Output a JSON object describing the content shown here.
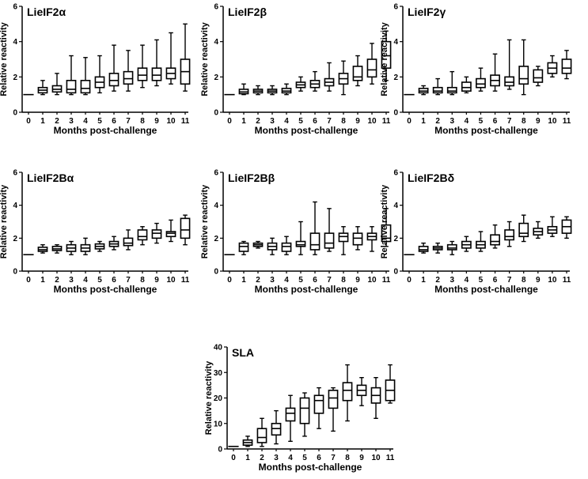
{
  "chart_data": [
    {
      "type": "boxplot",
      "title": "LieIF2α",
      "xlabel": "Months post-challenge",
      "ylabel": "Relative reactivity",
      "categories": [
        "0",
        "1",
        "2",
        "3",
        "4",
        "5",
        "6",
        "7",
        "8",
        "9",
        "10",
        "11"
      ],
      "ylim": [
        0,
        6
      ],
      "yticks": [
        0,
        2,
        4,
        6
      ],
      "boxes": [
        {
          "min": 1.0,
          "q1": 1.0,
          "median": 1.0,
          "q3": 1.0,
          "max": 1.0
        },
        {
          "min": 1.0,
          "q1": 1.1,
          "median": 1.25,
          "q3": 1.4,
          "max": 1.8
        },
        {
          "min": 1.0,
          "q1": 1.15,
          "median": 1.3,
          "q3": 1.5,
          "max": 2.2
        },
        {
          "min": 1.0,
          "q1": 1.1,
          "median": 1.3,
          "q3": 1.8,
          "max": 3.2
        },
        {
          "min": 1.0,
          "q1": 1.1,
          "median": 1.35,
          "q3": 1.8,
          "max": 3.1
        },
        {
          "min": 1.1,
          "q1": 1.4,
          "median": 1.7,
          "q3": 2.0,
          "max": 3.2
        },
        {
          "min": 1.2,
          "q1": 1.5,
          "median": 1.8,
          "q3": 2.2,
          "max": 3.8
        },
        {
          "min": 1.2,
          "q1": 1.6,
          "median": 1.9,
          "q3": 2.3,
          "max": 3.5
        },
        {
          "min": 1.4,
          "q1": 1.8,
          "median": 2.1,
          "q3": 2.5,
          "max": 3.8
        },
        {
          "min": 1.5,
          "q1": 1.8,
          "median": 2.1,
          "q3": 2.5,
          "max": 4.1
        },
        {
          "min": 1.6,
          "q1": 1.9,
          "median": 2.2,
          "q3": 2.5,
          "max": 4.5
        },
        {
          "min": 1.2,
          "q1": 1.6,
          "median": 2.3,
          "q3": 3.0,
          "max": 5.0
        }
      ]
    },
    {
      "type": "boxplot",
      "title": "LieIF2β",
      "xlabel": "Months post-challenge",
      "ylabel": "Relative reactivity",
      "categories": [
        "0",
        "1",
        "2",
        "3",
        "4",
        "5",
        "6",
        "7",
        "8",
        "9",
        "10",
        "11"
      ],
      "ylim": [
        0,
        6
      ],
      "yticks": [
        0,
        2,
        4,
        6
      ],
      "boxes": [
        {
          "min": 1.0,
          "q1": 1.0,
          "median": 1.0,
          "q3": 1.0,
          "max": 1.0
        },
        {
          "min": 1.0,
          "q1": 1.05,
          "median": 1.15,
          "q3": 1.3,
          "max": 1.6
        },
        {
          "min": 1.0,
          "q1": 1.1,
          "median": 1.2,
          "q3": 1.3,
          "max": 1.5
        },
        {
          "min": 1.0,
          "q1": 1.1,
          "median": 1.2,
          "q3": 1.3,
          "max": 1.5
        },
        {
          "min": 1.0,
          "q1": 1.1,
          "median": 1.2,
          "q3": 1.35,
          "max": 1.6
        },
        {
          "min": 1.2,
          "q1": 1.4,
          "median": 1.55,
          "q3": 1.7,
          "max": 2.0
        },
        {
          "min": 1.2,
          "q1": 1.4,
          "median": 1.6,
          "q3": 1.8,
          "max": 2.3
        },
        {
          "min": 1.2,
          "q1": 1.5,
          "median": 1.7,
          "q3": 1.9,
          "max": 2.8
        },
        {
          "min": 1.0,
          "q1": 1.6,
          "median": 1.9,
          "q3": 2.2,
          "max": 2.9
        },
        {
          "min": 1.5,
          "q1": 1.8,
          "median": 2.0,
          "q3": 2.6,
          "max": 3.2
        },
        {
          "min": 1.6,
          "q1": 2.0,
          "median": 2.4,
          "q3": 3.0,
          "max": 3.9
        },
        {
          "min": 1.8,
          "q1": 2.5,
          "median": 3.2,
          "q3": 4.0,
          "max": 4.6
        }
      ]
    },
    {
      "type": "boxplot",
      "title": "LieIF2γ",
      "xlabel": "Months post-challenge",
      "ylabel": "Relative reactivity",
      "categories": [
        "0",
        "1",
        "2",
        "3",
        "4",
        "5",
        "6",
        "7",
        "8",
        "9",
        "10",
        "11"
      ],
      "ylim": [
        0,
        6
      ],
      "yticks": [
        0,
        2,
        4,
        6
      ],
      "boxes": [
        {
          "min": 1.0,
          "q1": 1.0,
          "median": 1.0,
          "q3": 1.0,
          "max": 1.0
        },
        {
          "min": 1.0,
          "q1": 1.1,
          "median": 1.2,
          "q3": 1.35,
          "max": 1.5
        },
        {
          "min": 1.0,
          "q1": 1.1,
          "median": 1.2,
          "q3": 1.4,
          "max": 1.9
        },
        {
          "min": 1.0,
          "q1": 1.1,
          "median": 1.2,
          "q3": 1.4,
          "max": 2.3
        },
        {
          "min": 1.1,
          "q1": 1.2,
          "median": 1.4,
          "q3": 1.7,
          "max": 2.0
        },
        {
          "min": 1.2,
          "q1": 1.4,
          "median": 1.6,
          "q3": 1.9,
          "max": 2.5
        },
        {
          "min": 1.2,
          "q1": 1.5,
          "median": 1.8,
          "q3": 2.1,
          "max": 3.3
        },
        {
          "min": 1.3,
          "q1": 1.5,
          "median": 1.7,
          "q3": 2.0,
          "max": 4.1
        },
        {
          "min": 1.0,
          "q1": 1.6,
          "median": 1.9,
          "q3": 2.6,
          "max": 4.1
        },
        {
          "min": 1.5,
          "q1": 1.7,
          "median": 1.95,
          "q3": 2.4,
          "max": 2.6
        },
        {
          "min": 2.0,
          "q1": 2.2,
          "median": 2.5,
          "q3": 2.8,
          "max": 3.2
        },
        {
          "min": 1.9,
          "q1": 2.2,
          "median": 2.5,
          "q3": 3.0,
          "max": 3.5
        }
      ]
    },
    {
      "type": "boxplot",
      "title": "LieIF2Bα",
      "xlabel": "Months post-challenge",
      "ylabel": "Relative reactivity",
      "categories": [
        "0",
        "1",
        "2",
        "3",
        "4",
        "5",
        "6",
        "7",
        "8",
        "9",
        "10",
        "11"
      ],
      "ylim": [
        0,
        6
      ],
      "yticks": [
        0,
        2,
        4,
        6
      ],
      "boxes": [
        {
          "min": 1.0,
          "q1": 1.0,
          "median": 1.0,
          "q3": 1.0,
          "max": 1.0
        },
        {
          "min": 1.1,
          "q1": 1.2,
          "median": 1.3,
          "q3": 1.45,
          "max": 1.6
        },
        {
          "min": 1.1,
          "q1": 1.25,
          "median": 1.35,
          "q3": 1.5,
          "max": 1.6
        },
        {
          "min": 1.0,
          "q1": 1.2,
          "median": 1.4,
          "q3": 1.6,
          "max": 1.8
        },
        {
          "min": 1.0,
          "q1": 1.2,
          "median": 1.4,
          "q3": 1.6,
          "max": 2.0
        },
        {
          "min": 1.2,
          "q1": 1.35,
          "median": 1.5,
          "q3": 1.65,
          "max": 1.8
        },
        {
          "min": 1.3,
          "q1": 1.5,
          "median": 1.65,
          "q3": 1.8,
          "max": 2.1
        },
        {
          "min": 1.3,
          "q1": 1.55,
          "median": 1.7,
          "q3": 2.0,
          "max": 2.5
        },
        {
          "min": 1.6,
          "q1": 1.9,
          "median": 2.1,
          "q3": 2.5,
          "max": 2.7
        },
        {
          "min": 1.7,
          "q1": 2.0,
          "median": 2.3,
          "q3": 2.5,
          "max": 2.9
        },
        {
          "min": 1.8,
          "q1": 2.1,
          "median": 2.3,
          "q3": 2.4,
          "max": 3.1
        },
        {
          "min": 1.6,
          "q1": 2.0,
          "median": 2.5,
          "q3": 3.2,
          "max": 3.4
        }
      ]
    },
    {
      "type": "boxplot",
      "title": "LieIF2Bβ",
      "xlabel": "Months post-challenge",
      "ylabel": "Relative reactivity",
      "categories": [
        "0",
        "1",
        "2",
        "3",
        "4",
        "5",
        "6",
        "7",
        "8",
        "9",
        "10",
        "11"
      ],
      "ylim": [
        0,
        6
      ],
      "yticks": [
        0,
        2,
        4,
        6
      ],
      "boxes": [
        {
          "min": 1.0,
          "q1": 1.0,
          "median": 1.0,
          "q3": 1.0,
          "max": 1.0
        },
        {
          "min": 1.0,
          "q1": 1.2,
          "median": 1.5,
          "q3": 1.7,
          "max": 1.8
        },
        {
          "min": 1.4,
          "q1": 1.5,
          "median": 1.6,
          "q3": 1.7,
          "max": 1.8
        },
        {
          "min": 1.0,
          "q1": 1.3,
          "median": 1.5,
          "q3": 1.7,
          "max": 2.0
        },
        {
          "min": 1.0,
          "q1": 1.2,
          "median": 1.5,
          "q3": 1.7,
          "max": 2.1
        },
        {
          "min": 1.0,
          "q1": 1.5,
          "median": 1.6,
          "q3": 1.8,
          "max": 3.0
        },
        {
          "min": 1.0,
          "q1": 1.3,
          "median": 1.6,
          "q3": 2.3,
          "max": 4.2
        },
        {
          "min": 1.2,
          "q1": 1.4,
          "median": 1.7,
          "q3": 2.3,
          "max": 3.8
        },
        {
          "min": 1.0,
          "q1": 1.8,
          "median": 2.1,
          "q3": 2.3,
          "max": 2.7
        },
        {
          "min": 1.3,
          "q1": 1.6,
          "median": 2.0,
          "q3": 2.3,
          "max": 2.7
        },
        {
          "min": 1.2,
          "q1": 1.9,
          "median": 2.1,
          "q3": 2.3,
          "max": 2.7
        },
        {
          "min": 1.5,
          "q1": 1.8,
          "median": 2.0,
          "q3": 2.8,
          "max": 3.8
        }
      ]
    },
    {
      "type": "boxplot",
      "title": "LieIF2Bδ",
      "xlabel": "Months post-challenge",
      "ylabel": "Relative reactivity",
      "categories": [
        "0",
        "1",
        "2",
        "3",
        "4",
        "5",
        "6",
        "7",
        "8",
        "9",
        "10",
        "11"
      ],
      "ylim": [
        0,
        6
      ],
      "yticks": [
        0,
        2,
        4,
        6
      ],
      "boxes": [
        {
          "min": 1.0,
          "q1": 1.0,
          "median": 1.0,
          "q3": 1.0,
          "max": 1.0
        },
        {
          "min": 1.1,
          "q1": 1.2,
          "median": 1.3,
          "q3": 1.5,
          "max": 1.7
        },
        {
          "min": 1.1,
          "q1": 1.3,
          "median": 1.4,
          "q3": 1.5,
          "max": 1.7
        },
        {
          "min": 1.0,
          "q1": 1.3,
          "median": 1.4,
          "q3": 1.6,
          "max": 1.8
        },
        {
          "min": 1.2,
          "q1": 1.4,
          "median": 1.6,
          "q3": 1.8,
          "max": 2.1
        },
        {
          "min": 1.2,
          "q1": 1.4,
          "median": 1.6,
          "q3": 1.8,
          "max": 2.4
        },
        {
          "min": 1.4,
          "q1": 1.6,
          "median": 1.8,
          "q3": 2.2,
          "max": 2.8
        },
        {
          "min": 1.5,
          "q1": 1.9,
          "median": 2.1,
          "q3": 2.5,
          "max": 3.0
        },
        {
          "min": 1.8,
          "q1": 2.1,
          "median": 2.3,
          "q3": 2.9,
          "max": 3.4
        },
        {
          "min": 2.0,
          "q1": 2.2,
          "median": 2.4,
          "q3": 2.6,
          "max": 3.0
        },
        {
          "min": 2.1,
          "q1": 2.3,
          "median": 2.5,
          "q3": 2.7,
          "max": 3.3
        },
        {
          "min": 2.0,
          "q1": 2.3,
          "median": 2.7,
          "q3": 3.1,
          "max": 3.3
        }
      ]
    },
    {
      "type": "boxplot",
      "title": "SLA",
      "xlabel": "Months post-challenge",
      "ylabel": "Relative reactivity",
      "categories": [
        "0",
        "1",
        "2",
        "3",
        "4",
        "5",
        "6",
        "7",
        "8",
        "9",
        "10",
        "11"
      ],
      "ylim": [
        0,
        40
      ],
      "yticks": [
        0,
        10,
        20,
        30,
        40
      ],
      "boxes": [
        {
          "min": 1.0,
          "q1": 1.0,
          "median": 1.0,
          "q3": 1.0,
          "max": 1.0
        },
        {
          "min": 1.0,
          "q1": 1.5,
          "median": 2.5,
          "q3": 3.5,
          "max": 5.0
        },
        {
          "min": 1.0,
          "q1": 2.5,
          "median": 4.5,
          "q3": 8.0,
          "max": 12.0
        },
        {
          "min": 2.0,
          "q1": 5.5,
          "median": 8.0,
          "q3": 10.0,
          "max": 15.0
        },
        {
          "min": 3.0,
          "q1": 11.0,
          "median": 14.0,
          "q3": 16.0,
          "max": 21.0
        },
        {
          "min": 5.0,
          "q1": 10.0,
          "median": 16.0,
          "q3": 20.0,
          "max": 22.0
        },
        {
          "min": 8.0,
          "q1": 14.0,
          "median": 19.0,
          "q3": 21.0,
          "max": 24.0
        },
        {
          "min": 7.0,
          "q1": 16.0,
          "median": 20.0,
          "q3": 23.0,
          "max": 24.0
        },
        {
          "min": 11.0,
          "q1": 19.0,
          "median": 23.0,
          "q3": 26.0,
          "max": 33.0
        },
        {
          "min": 17.0,
          "q1": 21.0,
          "median": 23.0,
          "q3": 25.0,
          "max": 28.0
        },
        {
          "min": 12.0,
          "q1": 18.0,
          "median": 21.0,
          "q3": 24.0,
          "max": 28.0
        },
        {
          "min": 18.0,
          "q1": 19.0,
          "median": 23.0,
          "q3": 27.0,
          "max": 33.0
        }
      ]
    }
  ]
}
